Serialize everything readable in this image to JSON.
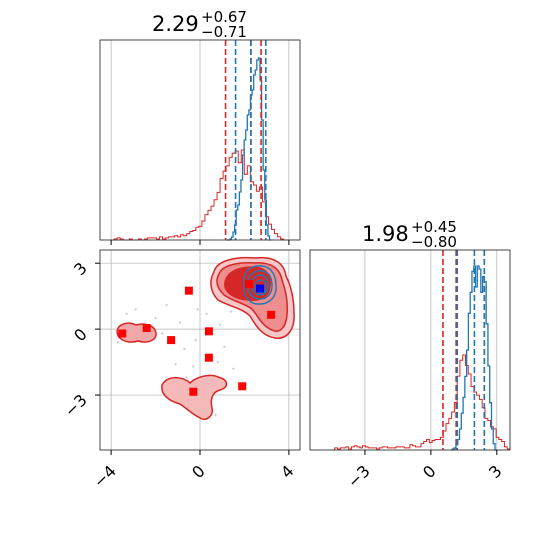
{
  "chart_data": {
    "type": "corner",
    "parameters": [
      {
        "title_median": "2.29",
        "title_plus": "+0.67",
        "title_minus": "−0.71",
        "xlim": [
          -4.5,
          4.5
        ],
        "ticks": [
          -4,
          0,
          4
        ],
        "tick_labels": [
          "−4",
          "0",
          "4"
        ]
      },
      {
        "title_median": "1.98",
        "title_plus": "+0.45",
        "title_minus": "−0.80",
        "range": [
          -5.5,
          3.6
        ],
        "ticks": [
          -3,
          0,
          3
        ],
        "tick_labels": [
          "−3",
          "0",
          "3"
        ]
      }
    ],
    "grid": true,
    "colors": {
      "blue": "#1f77b4",
      "red": "#d62728",
      "square_red": "#ff0000",
      "square_blue": "#0000ff",
      "grid": "#b0b0b0"
    },
    "quantiles": {
      "p1_blue": [
        1.6,
        2.29,
        2.96
      ],
      "p1_red": [
        1.15,
        2.29,
        2.75
      ],
      "p2_blue": [
        1.2,
        1.98,
        2.43
      ],
      "p2_red": [
        0.55,
        1.15,
        2.43
      ]
    },
    "hist_p1_red": {
      "bins": [
        -4.0,
        3.9
      ],
      "values": [
        0,
        1,
        2,
        1,
        0,
        0,
        1,
        0,
        0,
        1,
        0,
        1,
        2,
        2,
        2,
        1,
        3,
        1,
        2,
        3,
        3,
        4,
        3,
        5,
        4,
        6,
        8,
        9,
        12,
        13,
        18,
        24,
        28,
        32,
        38,
        45,
        58,
        65,
        70,
        78,
        82,
        84,
        73,
        85,
        62,
        70,
        55,
        52,
        46,
        50,
        36,
        22,
        15,
        10,
        6,
        3,
        1,
        0
      ]
    },
    "hist_p1_blue": {
      "bins": [
        1.2,
        3.2
      ],
      "values": [
        0,
        0,
        1,
        3,
        8,
        15,
        30,
        35,
        48,
        60,
        85,
        100,
        110,
        125,
        130,
        145,
        150,
        165,
        170,
        180,
        182,
        160,
        120,
        70,
        40,
        15,
        4,
        0
      ]
    },
    "hist_p2_red": {
      "bins": [
        -4.5,
        3.6
      ],
      "values": [
        0,
        2,
        1,
        2,
        2,
        3,
        1,
        3,
        4,
        3,
        2,
        4,
        3,
        2,
        2,
        2,
        1,
        2,
        3,
        3,
        2,
        2,
        2,
        3,
        3,
        3,
        2,
        2,
        5,
        4,
        3,
        3,
        6,
        8,
        10,
        7,
        9,
        10,
        10,
        12,
        18,
        25,
        30,
        36,
        45,
        70,
        85,
        90,
        80,
        72,
        60,
        55,
        52,
        48,
        40,
        30,
        28,
        22,
        20,
        12,
        10,
        8,
        3,
        1
      ]
    },
    "hist_p2_blue": {
      "bins": [
        0.9,
        3.0
      ],
      "values": [
        0,
        1,
        2,
        5,
        10,
        20,
        35,
        50,
        70,
        95,
        130,
        150,
        170,
        175,
        155,
        175,
        172,
        150,
        165,
        160,
        120,
        80,
        45,
        20,
        6,
        0
      ]
    },
    "red_squares": [
      [
        -3.5,
        -0.2
      ],
      [
        -2.4,
        0.05
      ],
      [
        -1.3,
        -0.5
      ],
      [
        -0.5,
        1.75
      ],
      [
        0.4,
        -0.1
      ],
      [
        0.4,
        -1.3
      ],
      [
        -0.3,
        -2.85
      ],
      [
        1.9,
        -2.6
      ],
      [
        2.2,
        2.05
      ],
      [
        3.2,
        0.65
      ]
    ],
    "blue_squares": [
      [
        2.7,
        1.85
      ]
    ],
    "gray_dots": [
      [
        -3.3,
        0.7
      ],
      [
        -2.7,
        -0.5
      ],
      [
        -1.5,
        1.1
      ],
      [
        -0.9,
        0.3
      ],
      [
        -0.7,
        -0.9
      ],
      [
        -1.1,
        -1.6
      ],
      [
        -0.2,
        -0.5
      ],
      [
        0.3,
        0.7
      ],
      [
        0.9,
        0.2
      ],
      [
        1.1,
        -0.8
      ],
      [
        -0.6,
        -2.2
      ],
      [
        -1.0,
        -3.3
      ],
      [
        0.2,
        -3.5
      ],
      [
        0.7,
        -3.9
      ],
      [
        1.0,
        -2.4
      ],
      [
        1.5,
        -1.8
      ],
      [
        -2.0,
        0.5
      ],
      [
        -3.7,
        -0.6
      ],
      [
        -2.9,
        0.9
      ],
      [
        1.4,
        0.8
      ],
      [
        -0.1,
        0.9
      ],
      [
        -0.3,
        -1.7
      ],
      [
        0.8,
        -1.5
      ],
      [
        -1.7,
        -0.2
      ]
    ]
  }
}
